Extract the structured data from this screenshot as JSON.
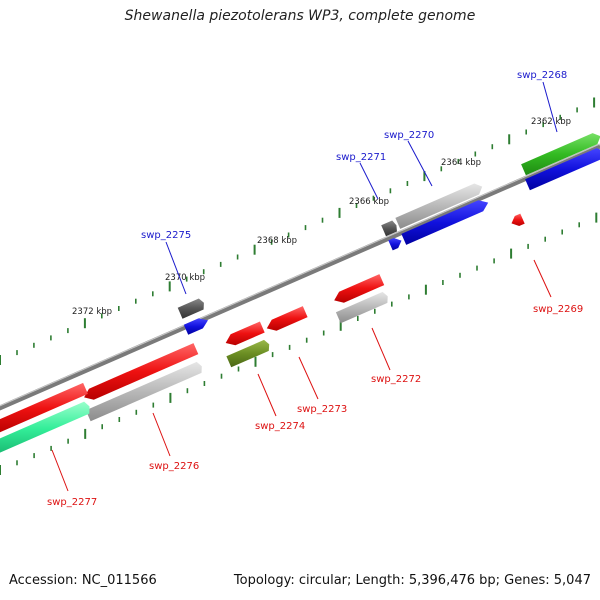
{
  "title": "Shewanella piezotolerans WP3, complete genome",
  "footer": {
    "accession": "Accession: NC_011566",
    "stats": "Topology: circular; Length: 5,396,476 bp; Genes: 5,047"
  },
  "colors": {
    "backbone": "#7a7a7a",
    "tick": "#2e7d32",
    "forward_label": "#1a1acc",
    "reverse_label": "#dd1111",
    "red": "#ee1111",
    "blue": "#1111dd",
    "gray": "#b8b8b8",
    "dark_gray": "#555555",
    "green": "#33bb22",
    "olive": "#6b8e23",
    "mint": "#33ee99"
  },
  "scale_labels": [
    "2362 kbp",
    "2364 kbp",
    "2366 kbp",
    "2368 kbp",
    "2370 kbp",
    "2372 kbp"
  ],
  "genes": [
    {
      "label": "swp_2268",
      "strand": "forward"
    },
    {
      "label": "swp_2269",
      "strand": "reverse"
    },
    {
      "label": "swp_2270",
      "strand": "forward"
    },
    {
      "label": "swp_2271",
      "strand": "forward"
    },
    {
      "label": "swp_2272",
      "strand": "reverse"
    },
    {
      "label": "swp_2273",
      "strand": "reverse"
    },
    {
      "label": "swp_2274",
      "strand": "reverse"
    },
    {
      "label": "swp_2275",
      "strand": "forward"
    },
    {
      "label": "swp_2276",
      "strand": "reverse"
    },
    {
      "label": "swp_2277",
      "strand": "reverse"
    }
  ]
}
